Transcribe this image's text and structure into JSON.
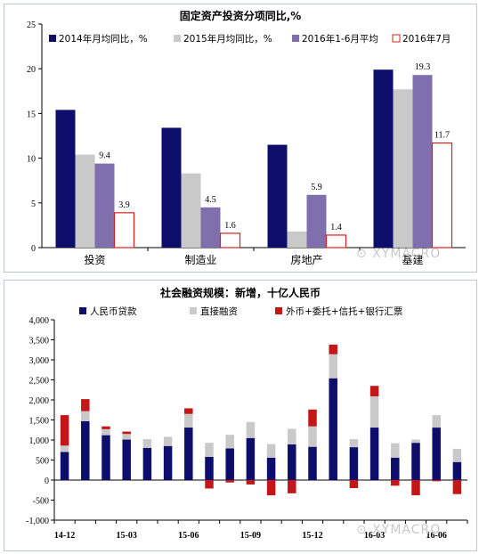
{
  "watermark": "XYMACRO",
  "chart_data": [
    {
      "type": "bar",
      "title": "固定资产投资分项同比,%",
      "categories": [
        "投资",
        "制造业",
        "房地产",
        "基建"
      ],
      "ylim": [
        0,
        25
      ],
      "yticks": [
        0,
        5,
        10,
        15,
        20,
        25
      ],
      "legend_position": "top",
      "series": [
        {
          "name": "2014年月均同比，%",
          "values": [
            15.4,
            13.4,
            11.5,
            19.9
          ],
          "color": "#0d0d6b"
        },
        {
          "name": "2015年月均同比，%",
          "values": [
            10.4,
            8.3,
            1.8,
            17.7
          ],
          "color": "#c9c9c9"
        },
        {
          "name": "2016年1-6月平均",
          "values": [
            9.4,
            4.5,
            5.9,
            19.3
          ],
          "color": "#7f6fad",
          "labels": [
            "9.4",
            "4.5",
            "5.9",
            "19.3"
          ]
        },
        {
          "name": "2016年7月",
          "values": [
            3.9,
            1.6,
            1.4,
            11.7
          ],
          "color": "#d42020",
          "hollow": true,
          "labels": [
            "3.9",
            "1.6",
            "1.4",
            "11.7"
          ]
        }
      ]
    },
    {
      "type": "bar",
      "stacked": true,
      "title": "社会融资规模：新增，十亿人民币",
      "ylim": [
        -1000,
        4000
      ],
      "yticks": [
        "-1,000",
        "-500",
        "0",
        "500",
        "1,000",
        "1,500",
        "2,000",
        "2,500",
        "3,000",
        "3,500",
        "4,000"
      ],
      "ytick_values": [
        -1000,
        -500,
        0,
        500,
        1000,
        1500,
        2000,
        2500,
        3000,
        3500,
        4000
      ],
      "categories": [
        "14-12",
        "15-01",
        "15-02",
        "15-03",
        "15-04",
        "15-05",
        "15-06",
        "15-07",
        "15-08",
        "15-09",
        "15-10",
        "15-11",
        "15-12",
        "16-01",
        "16-02",
        "16-03",
        "16-04",
        "16-05",
        "16-06",
        "16-07"
      ],
      "xtick_labels": [
        "14-12",
        "15-03",
        "15-06",
        "15-09",
        "15-12",
        "16-03",
        "16-06"
      ],
      "xtick_indices": [
        0,
        3,
        6,
        9,
        12,
        15,
        18
      ],
      "legend_position": "top",
      "series": [
        {
          "name": "人民币贷款",
          "color": "#0d0d6b",
          "values": [
            700,
            1470,
            1120,
            1010,
            800,
            850,
            1310,
            580,
            790,
            1050,
            560,
            890,
            830,
            2540,
            820,
            1310,
            560,
            930,
            1310,
            450
          ]
        },
        {
          "name": "直接融资",
          "color": "#c9c9c9",
          "values": [
            160,
            250,
            150,
            140,
            220,
            230,
            340,
            350,
            340,
            400,
            340,
            390,
            510,
            600,
            200,
            780,
            360,
            80,
            310,
            330
          ]
        },
        {
          "name": "外币+委托+信托+银行汇票",
          "color": "#c41616",
          "values": [
            760,
            300,
            70,
            60,
            0,
            0,
            140,
            -210,
            -60,
            -110,
            -380,
            -330,
            420,
            240,
            -200,
            260,
            -140,
            -380,
            -30,
            -350
          ]
        }
      ]
    }
  ]
}
